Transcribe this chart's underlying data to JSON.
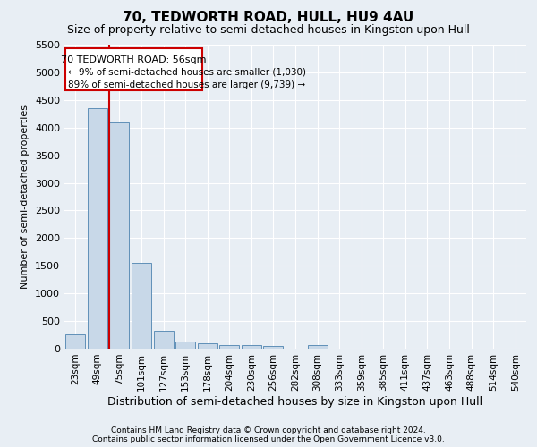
{
  "title": "70, TEDWORTH ROAD, HULL, HU9 4AU",
  "subtitle": "Size of property relative to semi-detached houses in Kingston upon Hull",
  "xlabel": "Distribution of semi-detached houses by size in Kingston upon Hull",
  "ylabel": "Number of semi-detached properties",
  "categories": [
    "23sqm",
    "49sqm",
    "75sqm",
    "101sqm",
    "127sqm",
    "153sqm",
    "178sqm",
    "204sqm",
    "230sqm",
    "256sqm",
    "282sqm",
    "308sqm",
    "333sqm",
    "359sqm",
    "385sqm",
    "411sqm",
    "437sqm",
    "463sqm",
    "488sqm",
    "514sqm",
    "540sqm"
  ],
  "values": [
    260,
    4350,
    4100,
    1550,
    320,
    130,
    90,
    70,
    65,
    50,
    0,
    65,
    0,
    0,
    0,
    0,
    0,
    0,
    0,
    0,
    0
  ],
  "bar_color": "#c8d8e8",
  "bar_edge_color": "#6090b8",
  "vline_x": 1.55,
  "vline_color": "#cc0000",
  "ylim": [
    0,
    5500
  ],
  "yticks": [
    0,
    500,
    1000,
    1500,
    2000,
    2500,
    3000,
    3500,
    4000,
    4500,
    5000,
    5500
  ],
  "annotation_title": "70 TEDWORTH ROAD: 56sqm",
  "annotation_line1": "← 9% of semi-detached houses are smaller (1,030)",
  "annotation_line2": "89% of semi-detached houses are larger (9,739) →",
  "annotation_box_color": "#ffffff",
  "annotation_box_edge_color": "#cc0000",
  "footnote1": "Contains HM Land Registry data © Crown copyright and database right 2024.",
  "footnote2": "Contains public sector information licensed under the Open Government Licence v3.0.",
  "bg_color": "#e8eef4",
  "plot_bg_color": "#e8eef4",
  "grid_color": "#ffffff",
  "title_fontsize": 11,
  "subtitle_fontsize": 9,
  "xlabel_fontsize": 9,
  "ylabel_fontsize": 8
}
